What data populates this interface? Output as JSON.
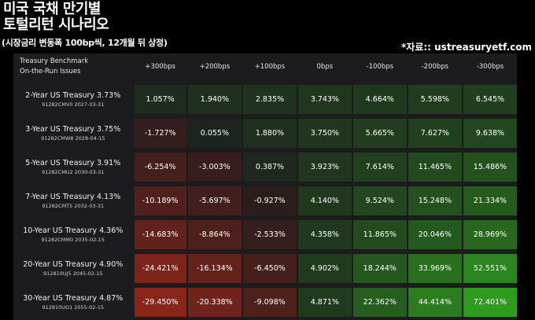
{
  "header": {
    "title_line1": "미국 국채 만기별",
    "title_line2": "토털리턴 시나리오",
    "subtitle": "(시장금리 변동폭 100bp씩, 12개월 뒤 상정)",
    "source": "*자료:: ustreasuryetf.com"
  },
  "table": {
    "row_header": [
      "Treasury Benchmark",
      "On-the-Run Issues"
    ],
    "columns": [
      "+300bps",
      "+200bps",
      "+100bps",
      "0bps",
      "-100bps",
      "-200bps",
      "-300bps"
    ],
    "rows": [
      {
        "name": "2-Year US Treasury 3.73%",
        "sub": "91282CMV0 2027-03-31",
        "values": [
          "1.057%",
          "1.940%",
          "2.835%",
          "3.743%",
          "4.664%",
          "5.598%",
          "6.545%"
        ]
      },
      {
        "name": "3-Year US Treasury 3.75%",
        "sub": "91282CMW8 2028-04-15",
        "values": [
          "-1.727%",
          "0.055%",
          "1.880%",
          "3.750%",
          "5.665%",
          "7.627%",
          "9.638%"
        ]
      },
      {
        "name": "5-Year US Treasury 3.91%",
        "sub": "91282CMU2 2030-03-31",
        "values": [
          "-6.254%",
          "-3.003%",
          "0.387%",
          "3.923%",
          "7.614%",
          "11.465%",
          "15.486%"
        ]
      },
      {
        "name": "7-Year US Treasury 4.13%",
        "sub": "91282CMT5 2032-03-31",
        "values": [
          "-10.189%",
          "-5.697%",
          "-0.927%",
          "4.140%",
          "9.524%",
          "15.248%",
          "21.334%"
        ]
      },
      {
        "name": "10-Year US Treasury 4.36%",
        "sub": "91282CMM0 2035-02-15",
        "values": [
          "-14.683%",
          "-8.864%",
          "-2.533%",
          "4.358%",
          "11.865%",
          "20.046%",
          "28.969%"
        ]
      },
      {
        "name": "20-Year US Treasury 4.90%",
        "sub": "912810UJ5 2045-02-15",
        "values": [
          "-24.421%",
          "-16.134%",
          "-6.450%",
          "4.902%",
          "18.244%",
          "33.969%",
          "52.551%"
        ]
      },
      {
        "name": "30-Year US Treasury 4.87%",
        "sub": "912810UG1 2055-02-15",
        "values": [
          "-29.450%",
          "-20.338%",
          "-9.098%",
          "4.871%",
          "22.362%",
          "44.414%",
          "72.401%"
        ]
      }
    ]
  },
  "chart_data": {
    "type": "heatmap",
    "title": "미국 국채 만기별 토털리턴 시나리오",
    "subtitle": "(시장금리 변동폭 100bp씩, 12개월 뒤 상정)",
    "x": [
      "+300bps",
      "+200bps",
      "+100bps",
      "0bps",
      "-100bps",
      "-200bps",
      "-300bps"
    ],
    "y": [
      "2-Year US Treasury 3.73%",
      "3-Year US Treasury 3.75%",
      "5-Year US Treasury 3.91%",
      "7-Year US Treasury 4.13%",
      "10-Year US Treasury 4.36%",
      "20-Year US Treasury 4.90%",
      "30-Year US Treasury 4.87%"
    ],
    "values": [
      [
        1.057,
        1.94,
        2.835,
        3.743,
        4.664,
        5.598,
        6.545
      ],
      [
        -1.727,
        0.055,
        1.88,
        3.75,
        5.665,
        7.627,
        9.638
      ],
      [
        -6.254,
        -3.003,
        0.387,
        3.923,
        7.614,
        11.465,
        15.486
      ],
      [
        -10.189,
        -5.697,
        -0.927,
        4.14,
        9.524,
        15.248,
        21.334
      ],
      [
        -14.683,
        -8.864,
        -2.533,
        4.358,
        11.865,
        20.046,
        28.969
      ],
      [
        -24.421,
        -16.134,
        -6.45,
        4.902,
        18.244,
        33.969,
        52.551
      ],
      [
        -29.45,
        -20.338,
        -9.098,
        4.871,
        22.362,
        44.414,
        72.401
      ]
    ],
    "colors": {
      "negative": "#8a2519",
      "neutral": "#1c1c1e",
      "positive": "#2e9a1e"
    }
  }
}
